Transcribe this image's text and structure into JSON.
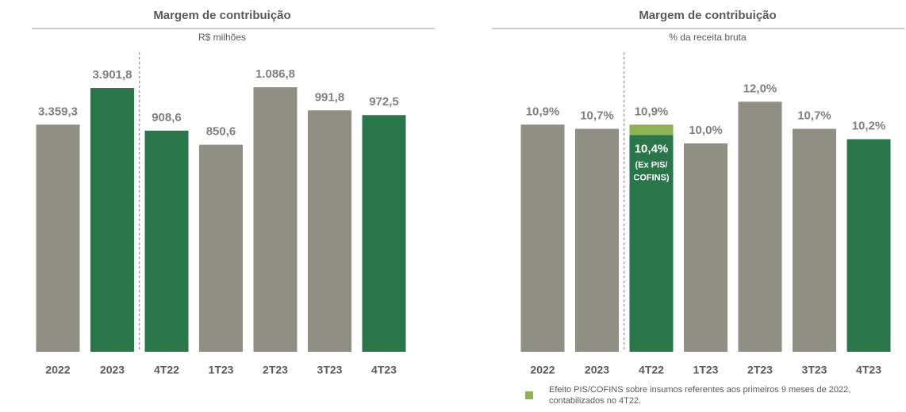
{
  "chart_data": [
    {
      "type": "bar",
      "title": "Margem de contribuição",
      "subtitle": "R$ milhões",
      "categories": [
        "2022",
        "2023",
        "4T22",
        "1T23",
        "2T23",
        "3T23",
        "4T23"
      ],
      "colors": [
        "#8f8f84",
        "#2a754a",
        "#2a754a",
        "#8f8f84",
        "#8f8f84",
        "#8f8f84",
        "#2a754a"
      ],
      "series": [
        {
          "axis": "y",
          "values": [
            3359.3,
            3901.8,
            null,
            null,
            null,
            null,
            null
          ],
          "value_labels": [
            "3.359,3",
            "3.901,8",
            null,
            null,
            null,
            null,
            null
          ]
        },
        {
          "axis": "y2",
          "values": [
            null,
            null,
            908.6,
            850.6,
            1086.8,
            991.8,
            972.5
          ],
          "value_labels": [
            null,
            null,
            "908,6",
            "850,6",
            "1.086,8",
            "991,8",
            "972,5"
          ]
        }
      ],
      "ylim": [
        0,
        4500
      ],
      "y2lim": [
        0,
        1250
      ],
      "separator_after": 1
    },
    {
      "type": "bar",
      "title": "Margem de contribuição",
      "subtitle": "% da receita bruta",
      "categories": [
        "2022",
        "2023",
        "4T22",
        "1T23",
        "2T23",
        "3T23",
        "4T23"
      ],
      "colors": [
        "#8f8f84",
        "#8f8f84",
        "#2a754a",
        "#8f8f84",
        "#8f8f84",
        "#8f8f84",
        "#2a754a"
      ],
      "series": [
        {
          "values": [
            10.9,
            10.7,
            10.4,
            10.0,
            12.0,
            10.7,
            10.2
          ],
          "value_labels": [
            "10,9%",
            "10,7%",
            "10,4%",
            "10,0%",
            "12,0%",
            "10,7%",
            "10,2%"
          ]
        },
        {
          "name": "Efeito PIS/COFINS sobre insumos referentes aos primeiros 9 meses de 2022, contabilizados no 4T22.",
          "color": "#8db255",
          "stacked": true,
          "values": [
            null,
            null,
            0.5,
            null,
            null,
            null,
            null
          ]
        }
      ],
      "annotations": [
        {
          "category": 2,
          "value": 10.9,
          "text": "10,9%"
        }
      ],
      "inside_note": {
        "category": 2,
        "lines": [
          "(Ex PIS/",
          "COFINS)"
        ]
      },
      "ylim": [
        0,
        14.6
      ],
      "separator_after": 1
    }
  ]
}
